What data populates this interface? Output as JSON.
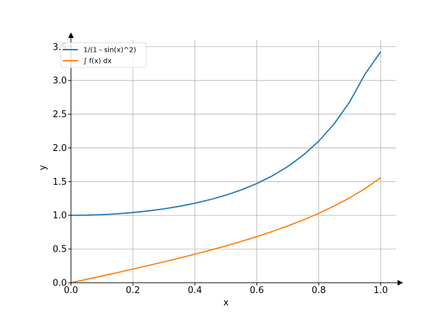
{
  "chart_data": {
    "type": "line",
    "title": "",
    "xlabel": "x",
    "ylabel": "y",
    "xlim": [
      0.0,
      1.05
    ],
    "ylim": [
      0.0,
      3.6
    ],
    "x_ticks": [
      0.0,
      0.2,
      0.4,
      0.6,
      0.8,
      1.0
    ],
    "x_tick_labels": [
      "0.0",
      "0.2",
      "0.4",
      "0.6",
      "0.8",
      "1.0"
    ],
    "y_ticks": [
      0.0,
      0.5,
      1.0,
      1.5,
      2.0,
      2.5,
      3.0,
      3.5
    ],
    "y_tick_labels": [
      "0.0",
      "0.5",
      "1.0",
      "1.5",
      "2.0",
      "2.5",
      "3.0",
      "3.5"
    ],
    "grid": true,
    "legend_position": "top-left",
    "x": [
      0.0,
      0.05,
      0.1,
      0.15,
      0.2,
      0.25,
      0.3,
      0.35,
      0.4,
      0.45,
      0.5,
      0.55,
      0.6,
      0.65,
      0.7,
      0.75,
      0.8,
      0.85,
      0.9,
      0.95,
      1.0
    ],
    "series": [
      {
        "name": "1/(1 - sin(x)^2)",
        "color": "#1f77b4",
        "values": [
          1.0,
          1.0025,
          1.0101,
          1.0227,
          1.0411,
          1.0655,
          1.0957,
          1.1333,
          1.1788,
          1.2331,
          1.2984,
          1.3768,
          1.4711,
          1.5848,
          1.7231,
          1.8922,
          2.0997,
          2.3582,
          2.6845,
          3.0989,
          3.4255
        ]
      },
      {
        "name": "∫ f(x) dx",
        "color": "#ff7f0e",
        "values": [
          0.0,
          0.05,
          0.1003,
          0.1511,
          0.2027,
          0.2553,
          0.3093,
          0.365,
          0.4228,
          0.4831,
          0.5463,
          0.6131,
          0.6841,
          0.7602,
          0.8423,
          0.9316,
          1.0296,
          1.1383,
          1.2602,
          1.3984,
          1.5574
        ]
      }
    ]
  }
}
